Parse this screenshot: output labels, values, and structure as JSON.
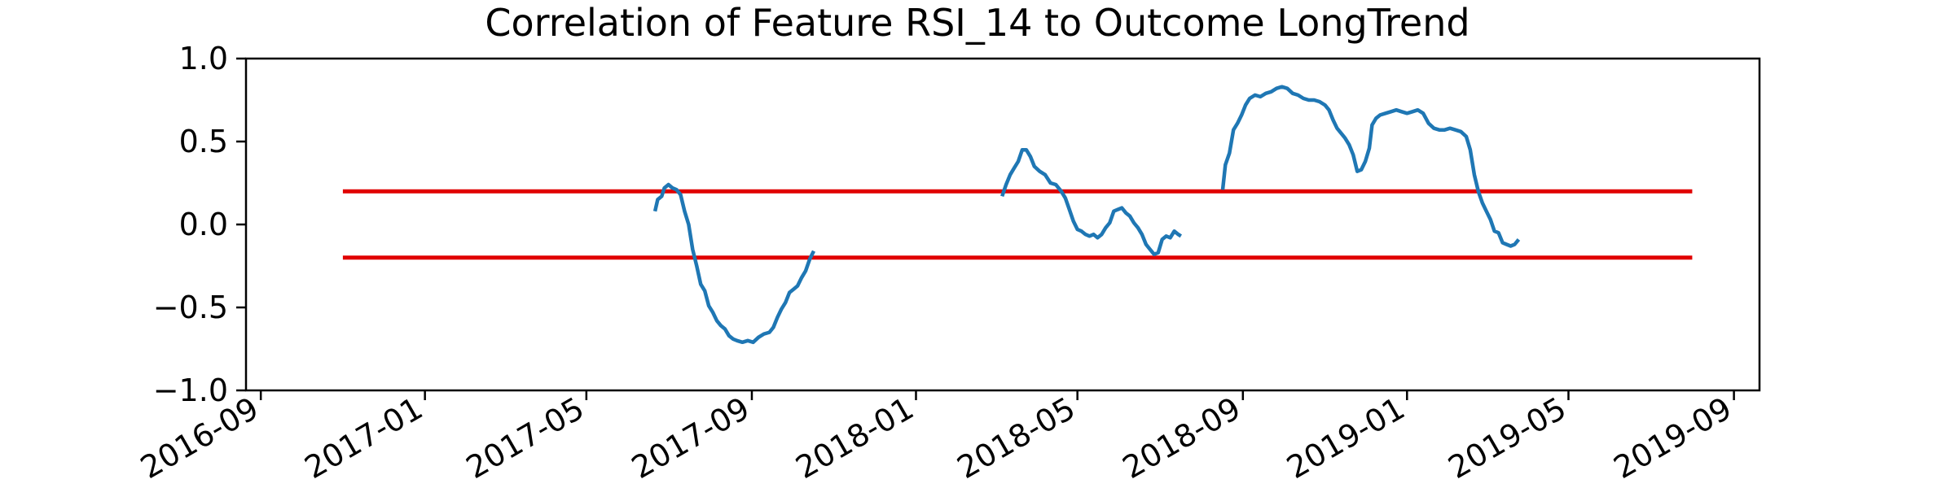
{
  "chart_data": {
    "type": "line",
    "title": "Correlation of Feature RSI_14 to Outcome LongTrend",
    "xlabel": "",
    "ylabel": "",
    "xlim": [
      "2016-08-21",
      "2019-09-20"
    ],
    "ylim": [
      -1.0,
      1.0
    ],
    "x_ticks": [
      "2016-09",
      "2017-01",
      "2017-05",
      "2017-09",
      "2018-01",
      "2018-05",
      "2018-09",
      "2019-01",
      "2019-05",
      "2019-09"
    ],
    "y_ticks": [
      "1.0",
      "0.5",
      "0.0",
      "−0.5",
      "−1.0"
    ],
    "y_tick_values": [
      1.0,
      0.5,
      0.0,
      -0.5,
      -1.0
    ],
    "grid": false,
    "legend": "none",
    "threshold_lines": [
      {
        "y": 0.2,
        "x_start": "2016-11-01",
        "x_end": "2019-08-01",
        "color": "#e00000"
      },
      {
        "y": -0.2,
        "x_start": "2016-11-01",
        "x_end": "2019-08-01",
        "color": "#e00000"
      }
    ],
    "series": [
      {
        "color": "#1f77b4",
        "segments": [
          [
            [
              "2017-06-21",
              0.08
            ],
            [
              "2017-06-23",
              0.15
            ],
            [
              "2017-06-26",
              0.17
            ],
            [
              "2017-06-28",
              0.22
            ],
            [
              "2017-07-01",
              0.24
            ],
            [
              "2017-07-04",
              0.22
            ],
            [
              "2017-07-07",
              0.21
            ],
            [
              "2017-07-10",
              0.18
            ],
            [
              "2017-07-13",
              0.08
            ],
            [
              "2017-07-16",
              0.0
            ],
            [
              "2017-07-19",
              -0.15
            ],
            [
              "2017-07-22",
              -0.25
            ],
            [
              "2017-07-25",
              -0.36
            ],
            [
              "2017-07-28",
              -0.4
            ],
            [
              "2017-07-31",
              -0.49
            ],
            [
              "2017-08-03",
              -0.53
            ],
            [
              "2017-08-06",
              -0.58
            ],
            [
              "2017-08-09",
              -0.61
            ],
            [
              "2017-08-12",
              -0.63
            ],
            [
              "2017-08-15",
              -0.67
            ],
            [
              "2017-08-18",
              -0.69
            ],
            [
              "2017-08-21",
              -0.7
            ],
            [
              "2017-08-25",
              -0.71
            ],
            [
              "2017-08-29",
              -0.7
            ],
            [
              "2017-09-02",
              -0.71
            ],
            [
              "2017-09-06",
              -0.68
            ],
            [
              "2017-09-10",
              -0.66
            ],
            [
              "2017-09-14",
              -0.65
            ],
            [
              "2017-09-17",
              -0.62
            ],
            [
              "2017-09-20",
              -0.56
            ],
            [
              "2017-09-23",
              -0.51
            ],
            [
              "2017-09-26",
              -0.47
            ],
            [
              "2017-09-29",
              -0.41
            ],
            [
              "2017-10-02",
              -0.39
            ],
            [
              "2017-10-05",
              -0.37
            ],
            [
              "2017-10-08",
              -0.32
            ],
            [
              "2017-10-11",
              -0.28
            ],
            [
              "2017-10-14",
              -0.21
            ],
            [
              "2017-10-17",
              -0.16
            ]
          ],
          [
            [
              "2018-03-06",
              0.17
            ],
            [
              "2018-03-09",
              0.24
            ],
            [
              "2018-03-12",
              0.3
            ],
            [
              "2018-03-15",
              0.34
            ],
            [
              "2018-03-18",
              0.38
            ],
            [
              "2018-03-21",
              0.45
            ],
            [
              "2018-03-24",
              0.45
            ],
            [
              "2018-03-27",
              0.41
            ],
            [
              "2018-03-30",
              0.35
            ],
            [
              "2018-04-03",
              0.32
            ],
            [
              "2018-04-07",
              0.3
            ],
            [
              "2018-04-11",
              0.25
            ],
            [
              "2018-04-15",
              0.24
            ],
            [
              "2018-04-19",
              0.2
            ],
            [
              "2018-04-22",
              0.16
            ],
            [
              "2018-04-25",
              0.09
            ],
            [
              "2018-04-28",
              0.02
            ],
            [
              "2018-05-01",
              -0.03
            ],
            [
              "2018-05-04",
              -0.04
            ],
            [
              "2018-05-07",
              -0.06
            ],
            [
              "2018-05-10",
              -0.07
            ],
            [
              "2018-05-13",
              -0.06
            ],
            [
              "2018-05-16",
              -0.08
            ],
            [
              "2018-05-19",
              -0.06
            ],
            [
              "2018-05-22",
              -0.02
            ],
            [
              "2018-05-25",
              0.01
            ],
            [
              "2018-05-28",
              0.08
            ],
            [
              "2018-05-31",
              0.09
            ],
            [
              "2018-06-03",
              0.1
            ],
            [
              "2018-06-06",
              0.07
            ],
            [
              "2018-06-09",
              0.05
            ],
            [
              "2018-06-12",
              0.01
            ],
            [
              "2018-06-15",
              -0.02
            ],
            [
              "2018-06-18",
              -0.06
            ],
            [
              "2018-06-21",
              -0.12
            ],
            [
              "2018-06-24",
              -0.15
            ],
            [
              "2018-06-27",
              -0.18
            ],
            [
              "2018-06-30",
              -0.17
            ],
            [
              "2018-07-03",
              -0.09
            ],
            [
              "2018-07-06",
              -0.07
            ],
            [
              "2018-07-09",
              -0.08
            ],
            [
              "2018-07-12",
              -0.04
            ],
            [
              "2018-07-15",
              -0.06
            ],
            [
              "2018-07-17",
              -0.07
            ]
          ],
          [
            [
              "2018-08-17",
              0.21
            ],
            [
              "2018-08-19",
              0.36
            ],
            [
              "2018-08-22",
              0.43
            ],
            [
              "2018-08-25",
              0.57
            ],
            [
              "2018-08-28",
              0.61
            ],
            [
              "2018-08-31",
              0.66
            ],
            [
              "2018-09-03",
              0.72
            ],
            [
              "2018-09-06",
              0.76
            ],
            [
              "2018-09-10",
              0.78
            ],
            [
              "2018-09-14",
              0.77
            ],
            [
              "2018-09-18",
              0.79
            ],
            [
              "2018-09-22",
              0.8
            ],
            [
              "2018-09-26",
              0.82
            ],
            [
              "2018-09-30",
              0.83
            ],
            [
              "2018-10-04",
              0.82
            ],
            [
              "2018-10-08",
              0.79
            ],
            [
              "2018-10-12",
              0.78
            ],
            [
              "2018-10-16",
              0.76
            ],
            [
              "2018-10-20",
              0.75
            ],
            [
              "2018-10-24",
              0.75
            ],
            [
              "2018-10-28",
              0.74
            ],
            [
              "2018-11-01",
              0.72
            ],
            [
              "2018-11-04",
              0.69
            ],
            [
              "2018-11-07",
              0.63
            ],
            [
              "2018-11-10",
              0.58
            ],
            [
              "2018-11-13",
              0.55
            ],
            [
              "2018-11-16",
              0.52
            ],
            [
              "2018-11-19",
              0.48
            ],
            [
              "2018-11-22",
              0.42
            ],
            [
              "2018-11-25",
              0.32
            ],
            [
              "2018-11-28",
              0.33
            ],
            [
              "2018-12-01",
              0.38
            ],
            [
              "2018-12-04",
              0.46
            ],
            [
              "2018-12-06",
              0.6
            ],
            [
              "2018-12-09",
              0.64
            ],
            [
              "2018-12-12",
              0.66
            ],
            [
              "2018-12-16",
              0.67
            ],
            [
              "2018-12-20",
              0.68
            ],
            [
              "2018-12-24",
              0.69
            ],
            [
              "2018-12-28",
              0.68
            ],
            [
              "2019-01-01",
              0.67
            ],
            [
              "2019-01-05",
              0.68
            ],
            [
              "2019-01-09",
              0.69
            ],
            [
              "2019-01-13",
              0.67
            ],
            [
              "2019-01-17",
              0.61
            ],
            [
              "2019-01-21",
              0.58
            ],
            [
              "2019-01-25",
              0.57
            ],
            [
              "2019-01-29",
              0.57
            ],
            [
              "2019-02-02",
              0.58
            ],
            [
              "2019-02-06",
              0.57
            ],
            [
              "2019-02-10",
              0.56
            ],
            [
              "2019-02-14",
              0.53
            ],
            [
              "2019-02-17",
              0.45
            ],
            [
              "2019-02-20",
              0.3
            ],
            [
              "2019-02-23",
              0.2
            ],
            [
              "2019-02-26",
              0.13
            ],
            [
              "2019-03-01",
              0.08
            ],
            [
              "2019-03-04",
              0.03
            ],
            [
              "2019-03-07",
              -0.04
            ],
            [
              "2019-03-10",
              -0.05
            ],
            [
              "2019-03-13",
              -0.11
            ],
            [
              "2019-03-16",
              -0.12
            ],
            [
              "2019-03-19",
              -0.13
            ],
            [
              "2019-03-22",
              -0.12
            ],
            [
              "2019-03-25",
              -0.09
            ]
          ]
        ]
      }
    ]
  }
}
